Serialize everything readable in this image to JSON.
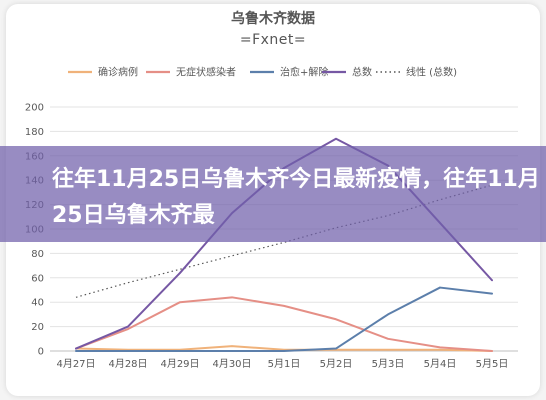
{
  "chart_data": {
    "type": "line",
    "title": "乌鲁木齐数据",
    "subtitle": "=Fxnet=",
    "categories": [
      "4月27日",
      "4月28日",
      "4月29日",
      "4月30日",
      "5月1日",
      "5月2日",
      "5月3日",
      "5月4日",
      "5月5日"
    ],
    "series": [
      {
        "name": "确诊病例",
        "color": "#f0b27a",
        "values": [
          2,
          1,
          1,
          4,
          1,
          1,
          1,
          1,
          0
        ]
      },
      {
        "name": "无症状感染者",
        "color": "#e58f86",
        "values": [
          2,
          18,
          40,
          44,
          37,
          26,
          10,
          3,
          0
        ]
      },
      {
        "name": "治愈+解除",
        "color": "#5c7fab",
        "values": [
          0,
          0,
          0,
          0,
          0,
          2,
          30,
          52,
          47
        ]
      },
      {
        "name": "总数",
        "color": "#7658a4",
        "values": [
          2,
          20,
          64,
          113,
          150,
          174,
          152,
          105,
          58
        ]
      }
    ],
    "trendline": {
      "name": "线性 (总数)",
      "color": "#555555",
      "values": [
        44,
        56,
        67,
        78,
        89,
        101,
        111,
        124,
        136
      ]
    },
    "yticks": [
      "0",
      "20",
      "40",
      "60",
      "80",
      "100",
      "120",
      "140",
      "160",
      "180",
      "200"
    ],
    "ylim": [
      0,
      200
    ],
    "grid": true,
    "legend_position": "top"
  },
  "overlay": {
    "headline": "往年11月25日乌鲁木齐今日最新疫情，往年11月25日乌鲁木齐最"
  }
}
